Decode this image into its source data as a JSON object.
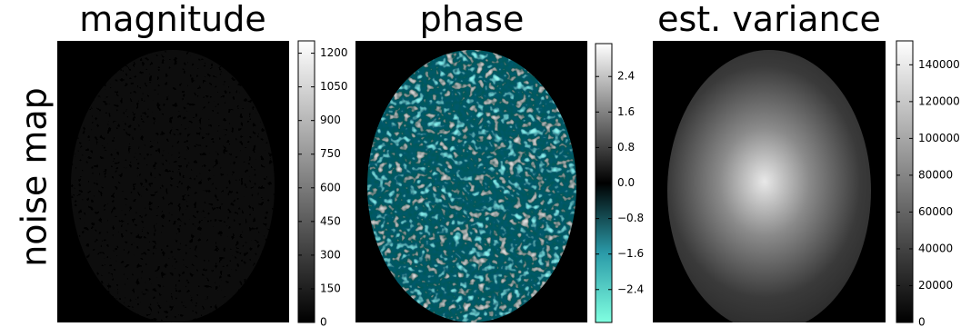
{
  "row_label": "noise map",
  "panels": [
    {
      "title": "magnitude",
      "colorbar": {
        "lim": [
          0,
          1255
        ],
        "ticks": [
          0,
          150,
          300,
          450,
          600,
          750,
          900,
          1050,
          1200
        ]
      }
    },
    {
      "title": "phase",
      "colorbar": {
        "lim": [
          -3.1416,
          3.1416
        ],
        "ticks": [
          {
            "value": -2.4,
            "label": "−2.4"
          },
          {
            "value": -1.6,
            "label": "−1.6"
          },
          {
            "value": -0.8,
            "label": "−0.8"
          },
          {
            "value": 0,
            "label": "0.0"
          },
          0.8,
          1.6,
          2.4
        ]
      }
    },
    {
      "title": "est. variance",
      "colorbar": {
        "lim": [
          0,
          153000
        ],
        "ticks": [
          0,
          20000,
          40000,
          60000,
          80000,
          100000,
          120000,
          140000
        ]
      }
    }
  ]
}
